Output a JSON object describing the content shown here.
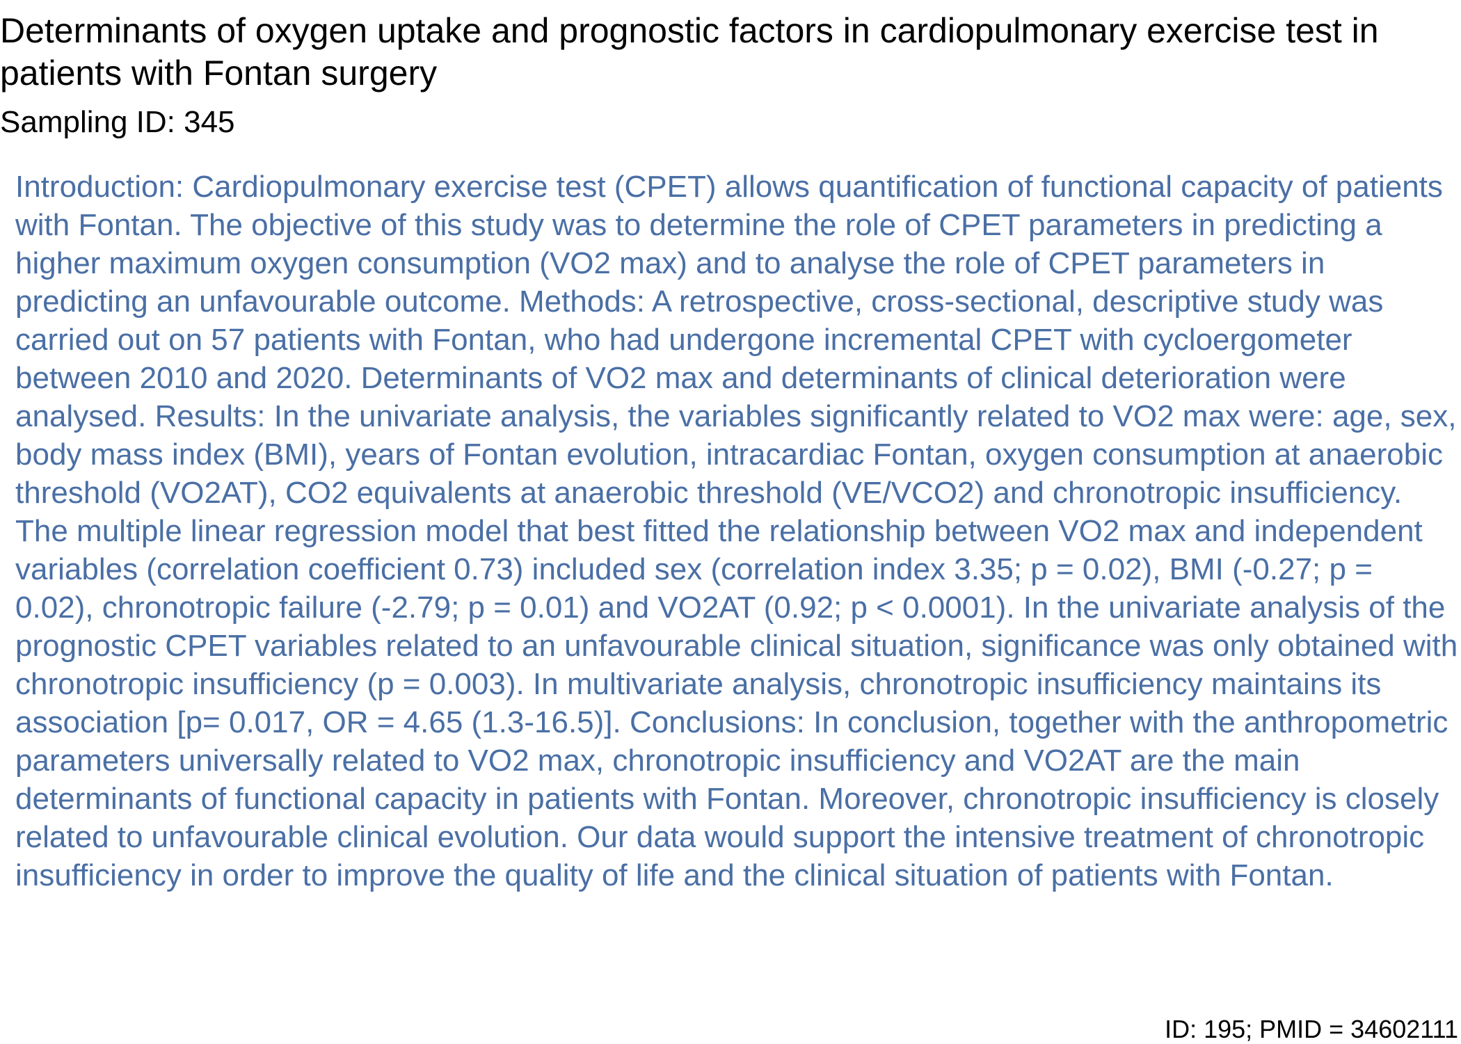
{
  "paper": {
    "title": "Determinants of oxygen uptake and prognostic factors in cardiopulmonary exercise test in patients with Fontan surgery",
    "sampling_id": "Sampling ID: 345",
    "abstract": "Introduction: Cardiopulmonary exercise test (CPET) allows quantification of functional capacity of patients with Fontan. The objective of this study was to determine the role of CPET parameters in predicting a higher maximum oxygen consumption (VO2 max) and to analyse the role of CPET parameters in predicting an unfavourable outcome. Methods: A retrospective, cross-sectional, descriptive study was carried out on 57 patients with Fontan, who had undergone incremental CPET with cycloergometer between 2010 and 2020. Determinants of VO2 max and determinants of clinical deterioration were analysed. Results: In the univariate analysis, the variables significantly related to VO2 max were: age, sex, body mass index (BMI), years of Fontan evolution, intracardiac Fontan, oxygen consumption at anaerobic threshold (VO2AT), CO2 equivalents at anaerobic threshold (VE/VCO2) and chronotropic insufficiency. The multiple linear regression model that best fitted the relationship between VO2 max and independent variables (correlation coefficient 0.73) included sex (correlation index 3.35; p = 0.02), BMI (-0.27; p = 0.02), chronotropic failure (-2.79; p = 0.01) and VO2AT (0.92; p < 0.0001). In the univariate analysis of the prognostic CPET variables related to an unfavourable clinical situation, significance was only obtained with chronotropic insufficiency (p = 0.003). In multivariate analysis, chronotropic insufficiency maintains its association [p= 0.017, OR = 4.65 (1.3-16.5)]. Conclusions: In conclusion, together with the anthropometric parameters universally related to VO2 max, chronotropic insufficiency and VO2AT are the main determinants of functional capacity in patients with Fontan. Moreover, chronotropic insufficiency is closely related to unfavourable clinical evolution. Our data would support the intensive treatment of chronotropic insufficiency in order to improve the quality of life and the clinical situation of patients with Fontan.",
    "footer": "ID: 195; PMID = 34602111"
  },
  "colors": {
    "title": "#000000",
    "abstract": "#4a6fa5"
  }
}
